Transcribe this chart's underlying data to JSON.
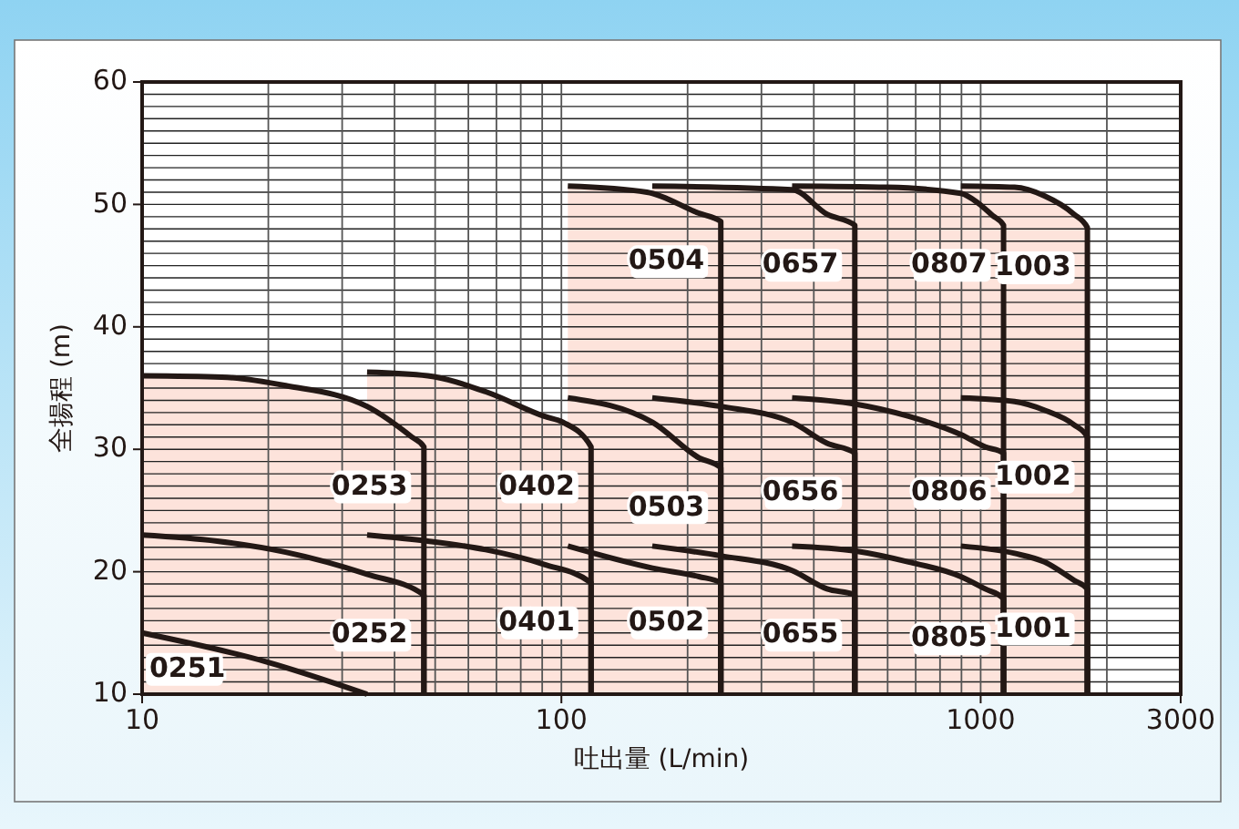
{
  "chart_data": {
    "type": "area",
    "xlabel": "吐出量 (L/min)",
    "ylabel": "全揚程 (m)",
    "log": "x",
    "grid": true,
    "xlim": [
      10,
      3000
    ],
    "ylim": [
      10,
      60
    ],
    "xticks": [
      10,
      100,
      1000,
      3000
    ],
    "yticks": [
      10,
      20,
      30,
      40,
      50,
      60
    ],
    "series": [
      {
        "name": "0251",
        "color": "#fde3db",
        "x": [
          10,
          20,
          34.4
        ],
        "values": [
          15,
          12.6,
          10
        ]
      },
      {
        "name": "0252",
        "color": "#fde3db",
        "x": [
          10,
          15.1,
          22,
          34.4,
          47,
          47
        ],
        "values": [
          23,
          22.5,
          21.6,
          19.8,
          18.1,
          10
        ]
      },
      {
        "name": "0253",
        "color": "#fde3db",
        "x": [
          10,
          15.5,
          22,
          34.4,
          44,
          47,
          47
        ],
        "values": [
          36,
          35.9,
          35.2,
          33.5,
          31,
          30.2,
          10
        ]
      },
      {
        "name": "0401",
        "color": "#fde3db",
        "x": [
          34.4,
          48,
          66,
          91,
          117.7,
          117.7
        ],
        "values": [
          23,
          22.5,
          21.8,
          20.6,
          19.1,
          10
        ]
      },
      {
        "name": "0402",
        "color": "#fde3db",
        "x": [
          34.4,
          48,
          66,
          91,
          101,
          117.7,
          117.7
        ],
        "values": [
          36.3,
          36,
          34.7,
          32.7,
          32.2,
          30.2,
          10
        ]
      },
      {
        "name": "0502",
        "color": "#fde3db",
        "x": [
          103.6,
          165,
          213,
          240,
          240
        ],
        "values": [
          22.1,
          20.3,
          19.6,
          19.1,
          10
        ]
      },
      {
        "name": "0503",
        "color": "#fde3db",
        "x": [
          103.6,
          165,
          213,
          240,
          240
        ],
        "values": [
          34.2,
          32.2,
          29.3,
          28.5,
          10
        ]
      },
      {
        "name": "0504",
        "color": "#fde3db",
        "x": [
          103.6,
          160,
          212,
          240,
          240
        ],
        "values": [
          51.5,
          51,
          49.3,
          48.6,
          10
        ]
      },
      {
        "name": "0655",
        "color": "#fde3db",
        "x": [
          164.7,
          240,
          355,
          430,
          501,
          501
        ],
        "values": [
          22.1,
          21.3,
          20.1,
          18.6,
          18.1,
          10
        ]
      },
      {
        "name": "0656",
        "color": "#fde3db",
        "x": [
          164.7,
          240,
          355,
          430,
          501,
          501
        ],
        "values": [
          34.2,
          33.5,
          32.2,
          30.5,
          29.7,
          10
        ]
      },
      {
        "name": "0657",
        "color": "#fde3db",
        "x": [
          164.7,
          355,
          430,
          501,
          501
        ],
        "values": [
          51.5,
          51.2,
          49.2,
          48.3,
          10
        ]
      },
      {
        "name": "0805",
        "color": "#fde3db",
        "x": [
          355,
          501,
          673,
          897,
          1025,
          1134,
          1134
        ],
        "values": [
          22.1,
          21.7,
          20.8,
          19.6,
          18.6,
          17.8,
          10
        ]
      },
      {
        "name": "0806",
        "color": "#fde3db",
        "x": [
          355,
          501,
          673,
          897,
          1025,
          1134,
          1134
        ],
        "values": [
          34.2,
          33.7,
          32.7,
          31.2,
          30.2,
          29.7,
          10
        ]
      },
      {
        "name": "0807",
        "color": "#fde3db",
        "x": [
          355,
          600,
          897,
          987,
          1067,
          1134,
          1134
        ],
        "values": [
          51.5,
          51.4,
          50.9,
          50.1,
          49.1,
          48.3,
          10
        ]
      },
      {
        "name": "1001",
        "color": "#fde3db",
        "x": [
          897,
          1205,
          1419,
          1670,
          1797,
          1797
        ],
        "values": [
          22.1,
          21.5,
          20.8,
          19.3,
          18.6,
          10
        ]
      },
      {
        "name": "1002",
        "color": "#fde3db",
        "x": [
          897,
          1205,
          1419,
          1670,
          1797,
          1797
        ],
        "values": [
          34.2,
          33.9,
          33.2,
          32,
          31,
          10
        ]
      },
      {
        "name": "1003",
        "color": "#fde3db",
        "x": [
          897,
          1205,
          1419,
          1670,
          1797,
          1797
        ],
        "values": [
          51.5,
          51.4,
          50.7,
          49.2,
          48.1,
          10
        ]
      }
    ]
  }
}
